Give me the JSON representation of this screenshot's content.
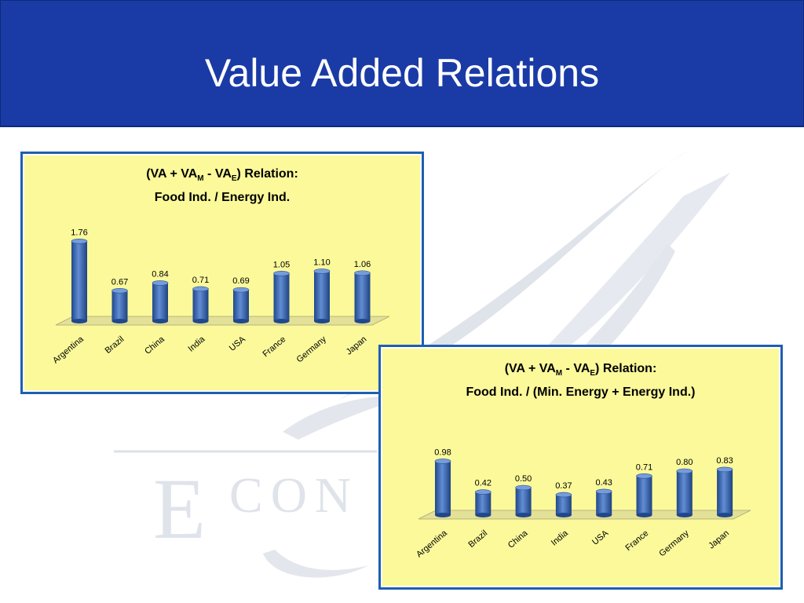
{
  "slide": {
    "title": "Value Added Relations"
  },
  "watermark": {
    "letters": "ECON"
  },
  "chart_data": [
    {
      "type": "bar",
      "title_line1": {
        "pre": "(VA + VA",
        "sub1": "M",
        "mid": " - VA",
        "sub2": "E",
        "post": ") Relation:"
      },
      "title_line2": "Food Ind. / Energy Ind.",
      "categories": [
        "Argentina",
        "Brazil",
        "China",
        "India",
        "USA",
        "France",
        "Germany",
        "Japan"
      ],
      "values": [
        1.76,
        0.67,
        0.84,
        0.71,
        0.69,
        1.05,
        1.1,
        1.06
      ],
      "value_labels": [
        "1.76",
        "0.67",
        "0.84",
        "0.71",
        "0.69",
        "1.05",
        "1.10",
        "1.06"
      ],
      "ylim": [
        0,
        1.8
      ],
      "bar_color": "#2e67c6",
      "floor_color": "#e3e098"
    },
    {
      "type": "bar",
      "title_line1": {
        "pre": "(VA + VA",
        "sub1": "M",
        "mid": " - VA",
        "sub2": "E",
        "post": ") Relation:"
      },
      "title_line2": "Food Ind. / (Min. Energy + Energy Ind.)",
      "categories": [
        "Argentina",
        "Brazil",
        "China",
        "India",
        "USA",
        "France",
        "Germany",
        "Japan"
      ],
      "values": [
        0.98,
        0.42,
        0.5,
        0.37,
        0.43,
        0.71,
        0.8,
        0.83
      ],
      "value_labels": [
        "0.98",
        "0.42",
        "0.50",
        "0.37",
        "0.43",
        "0.71",
        "0.80",
        "0.83"
      ],
      "ylim": [
        0,
        1.0
      ],
      "bar_color": "#2e67c6",
      "floor_color": "#e3e098"
    }
  ]
}
